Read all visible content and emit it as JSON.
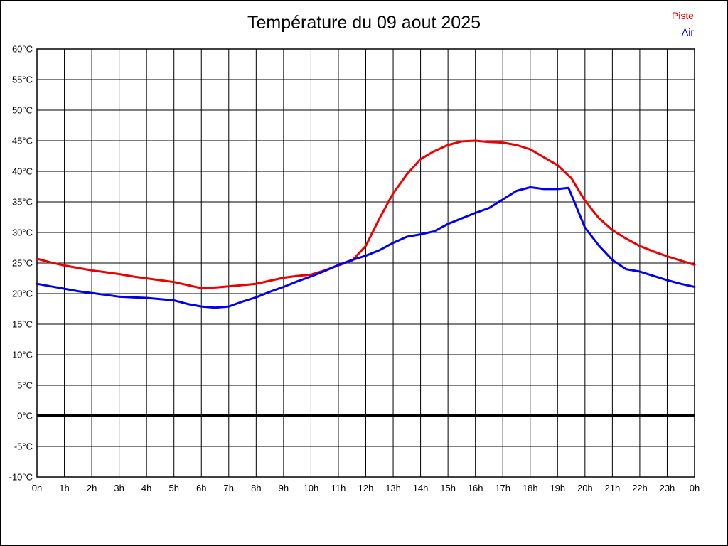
{
  "title": "Température du 09 aout 2025",
  "legend": [
    {
      "label": "Piste",
      "color": "#ee0000"
    },
    {
      "label": "Air",
      "color": "#0000ee"
    }
  ],
  "colors": {
    "background": "#ffffff",
    "grid": "#000000",
    "frame": "#000000",
    "zero_line": "#000000",
    "title_text": "#000000",
    "tick_text": "#000000"
  },
  "chart_data": {
    "type": "line",
    "title": "Température du 09 aout 2025",
    "xlabel": "",
    "ylabel": "",
    "xlim": [
      0,
      24
    ],
    "ylim": [
      -10,
      60
    ],
    "grid": true,
    "legend_position": "top-right",
    "x_tick_labels": [
      "0h",
      "1h",
      "2h",
      "3h",
      "4h",
      "5h",
      "6h",
      "7h",
      "8h",
      "9h",
      "10h",
      "11h",
      "12h",
      "13h",
      "14h",
      "15h",
      "16h",
      "17h",
      "18h",
      "19h",
      "20h",
      "21h",
      "22h",
      "23h",
      "0h"
    ],
    "y_tick_labels": [
      "60°C",
      "55°C",
      "50°C",
      "45°C",
      "40°C",
      "35°C",
      "30°C",
      "25°C",
      "20°C",
      "15°C",
      "10°C",
      "5°C",
      "0°C",
      "-5°C",
      "-10°C"
    ],
    "y_tick_values": [
      60,
      55,
      50,
      45,
      40,
      35,
      30,
      25,
      20,
      15,
      10,
      5,
      0,
      -5,
      -10
    ],
    "zero_line": {
      "value": 0,
      "thickness": 4
    },
    "x_hours": [
      0,
      0.5,
      1,
      1.5,
      2,
      2.5,
      3,
      3.5,
      4,
      4.5,
      5,
      5.5,
      6,
      6.5,
      7,
      7.5,
      8,
      8.5,
      9,
      9.5,
      10,
      10.5,
      11,
      11.5,
      12,
      12.5,
      13,
      13.5,
      14,
      14.5,
      15,
      15.5,
      16,
      16.5,
      17,
      17.5,
      18,
      18.5,
      19,
      19.4,
      19.5,
      20,
      20.5,
      21,
      21.5,
      22,
      22.5,
      23,
      23.5,
      24
    ],
    "series": [
      {
        "name": "Piste",
        "color": "#ee0000",
        "values": [
          25.7,
          25.1,
          24.6,
          24.2,
          23.8,
          23.5,
          23.2,
          22.8,
          22.5,
          22.2,
          21.9,
          21.4,
          20.9,
          21.0,
          21.2,
          21.4,
          21.6,
          22.1,
          22.6,
          22.9,
          23.1,
          23.8,
          24.6,
          25.4,
          27.8,
          32.3,
          36.4,
          39.5,
          42.0,
          43.3,
          44.3,
          44.9,
          45.0,
          44.8,
          44.7,
          44.3,
          43.6,
          42.3,
          41.0,
          39.3,
          38.9,
          35.2,
          32.4,
          30.4,
          29.0,
          27.8,
          26.9,
          26.1,
          25.4,
          24.7
        ]
      },
      {
        "name": "Air",
        "color": "#0000ee",
        "values": [
          21.6,
          21.2,
          20.8,
          20.4,
          20.1,
          19.8,
          19.5,
          19.4,
          19.3,
          19.1,
          18.9,
          18.3,
          17.9,
          17.7,
          17.9,
          18.7,
          19.4,
          20.3,
          21.1,
          22.0,
          22.8,
          23.7,
          24.7,
          25.5,
          26.2,
          27.1,
          28.3,
          29.3,
          29.7,
          30.2,
          31.4,
          32.3,
          33.2,
          34.0,
          35.4,
          36.8,
          37.4,
          37.1,
          37.1,
          37.3,
          36.2,
          30.8,
          27.9,
          25.5,
          24.0,
          23.6,
          22.9,
          22.2,
          21.6,
          21.1
        ]
      }
    ]
  }
}
